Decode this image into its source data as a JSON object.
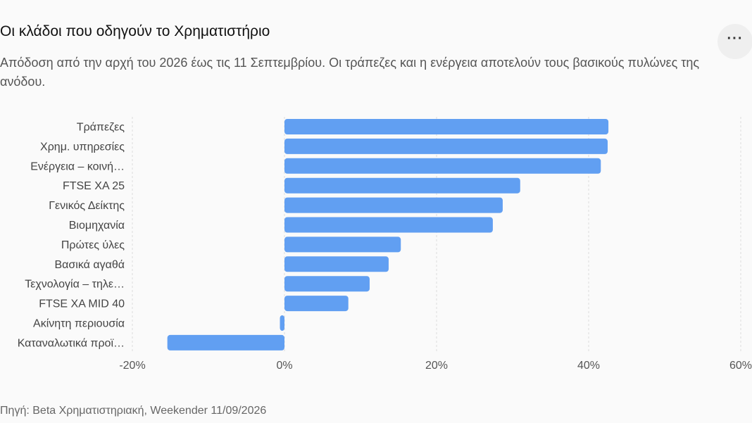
{
  "header": {
    "title": "Οι κλάδοι που οδηγούν το Χρηματιστήριο",
    "subtitle": "Απόδοση από την αρχή του 2026 έως τις 11 Σεπτεμβρίου. Οι τράπεζες και η ενέργεια αποτελούν τους βασικούς πυλώνες της ανόδου.",
    "menu_icon": "more-horizontal-icon",
    "menu_label": "···"
  },
  "chart_data": {
    "type": "bar",
    "orientation": "horizontal",
    "categories": [
      "Τράπεζες",
      "Χρημ. υπηρεσίες",
      "Ενέργεια – κοινή…",
      "FTSE XA 25",
      "Γενικός Δείκτης",
      "Βιομηχανία",
      "Πρώτες ύλες",
      "Βασικά αγαθά",
      "Τεχνολογία – τηλε…",
      "FTSE XA MID 40",
      "Ακίνητη περιουσία",
      "Καταναλωτικά προϊ…"
    ],
    "values": [
      42.6,
      42.5,
      41.6,
      31.0,
      28.7,
      27.4,
      15.3,
      13.7,
      11.2,
      8.4,
      -0.6,
      -15.4
    ],
    "xlim": [
      -20,
      60
    ],
    "xticks": [
      -20,
      0,
      20,
      40,
      60
    ],
    "xtick_labels": [
      "-20%",
      "0%",
      "20%",
      "40%",
      "60%"
    ],
    "grid": "vertical dashed",
    "bar_color": "#619ff2"
  },
  "footer": {
    "source": "Πηγή: Beta Χρηματιστηριακή, Weekender 11/09/2026"
  }
}
